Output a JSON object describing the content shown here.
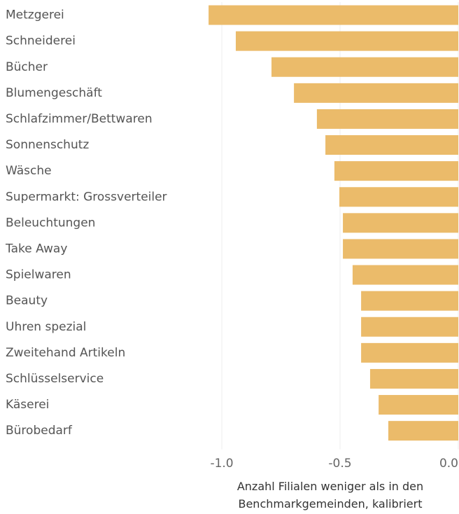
{
  "chart_data": {
    "type": "barh",
    "categories": [
      "Metzgerei",
      "Schneiderei",
      "Bücher",
      "Blumengeschäft",
      "Schlafzimmer/Bettwaren",
      "Sonnenschutz",
      "Wäsche",
      "Supermarkt: Grossverteiler",
      "Beleuchtungen",
      "Take Away",
      "Spielwaren",
      "Beauty",
      "Uhren spezial",
      "Zweitehand Artikeln",
      "Schlüsselservice",
      "Käserei",
      "Bürobedarf"
    ],
    "values": [
      -1.056,
      -0.941,
      -0.79,
      -0.695,
      -0.598,
      -0.562,
      -0.524,
      -0.503,
      -0.488,
      -0.488,
      -0.447,
      -0.411,
      -0.411,
      -0.411,
      -0.373,
      -0.337,
      -0.296
    ],
    "color": "#ebbb6a",
    "xlim": [
      -1.08,
      0
    ],
    "xticks": [
      {
        "value": -1,
        "label": "-1.0"
      },
      {
        "value": -0.5,
        "label": "-0.5"
      },
      {
        "value": 0,
        "label": "0.0"
      }
    ],
    "grid": true,
    "x_label": "Anzahl Filialen weniger als in den Benchmarkgemeinden, kalibriert"
  }
}
